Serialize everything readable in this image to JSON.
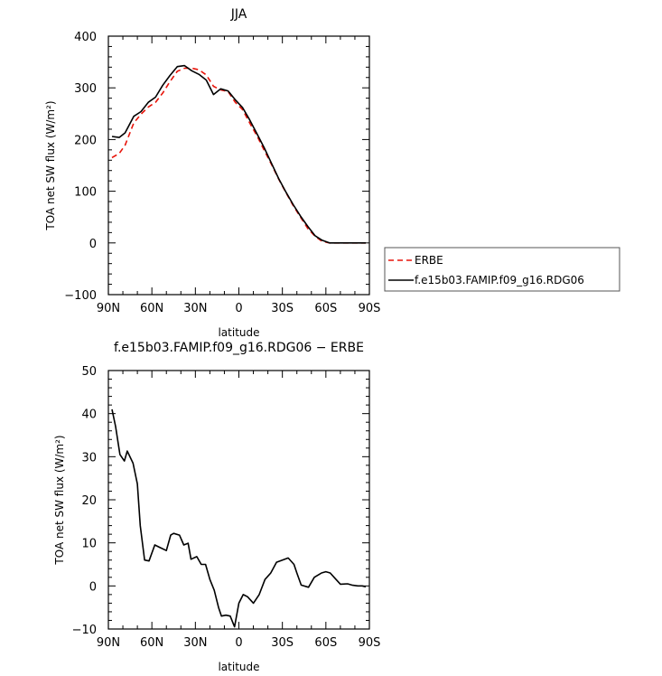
{
  "page": {
    "background": "#ffffff"
  },
  "chart_data": [
    {
      "type": "line",
      "title": "JJA",
      "xlabel": "latitude",
      "ylabel": "TOA net SW flux (W/m²)",
      "xlim": [
        90,
        -90
      ],
      "ylim": [
        -100,
        400
      ],
      "x_ticks": [
        90,
        60,
        30,
        0,
        -30,
        -60,
        -90
      ],
      "x_tick_labels": [
        "90N",
        "60N",
        "30N",
        "0",
        "30S",
        "60S",
        "90S"
      ],
      "y_ticks": [
        -100,
        0,
        100,
        200,
        300,
        400
      ],
      "y_tick_labels": [
        "−100",
        "0",
        "100",
        "200",
        "300",
        "400"
      ],
      "legend": {
        "placement": "right",
        "entries": [
          "ERBE",
          "f.e15b03.FAMIP.f09_g16.RDG06"
        ]
      },
      "series": [
        {
          "name": "ERBE",
          "color": "#e8140a",
          "dash": "dashed",
          "x": [
            87.5,
            82.5,
            78.5,
            72.5,
            67.5,
            62.5,
            57.5,
            52.5,
            47.5,
            42.5,
            37.5,
            32.5,
            27.5,
            22.5,
            17.5,
            12.5,
            7.5,
            2.5,
            -2.5,
            -7.5,
            -12.5,
            -17.5,
            -22.5,
            -27.5,
            -32.5,
            -37.5,
            -42.5,
            -47.5,
            -52.5,
            -57.5,
            -62.5,
            -67.5,
            -72.5,
            -77.5,
            -82.5,
            -87.5
          ],
          "y": [
            165,
            173,
            189,
            232,
            249,
            263,
            272,
            290,
            312,
            332,
            338,
            338,
            335,
            325,
            303,
            296,
            293,
            272,
            258,
            232,
            207,
            179,
            152,
            123,
            97,
            72,
            50,
            28,
            13,
            3,
            0,
            0,
            0,
            0,
            0,
            0
          ]
        },
        {
          "name": "f.e15b03.FAMIP.f09_g16.RDG06",
          "color": "#000000",
          "dash": "solid",
          "x": [
            87.5,
            82.5,
            78.5,
            72.5,
            67.5,
            62.5,
            57.5,
            52.5,
            47.5,
            42.5,
            37.5,
            32.5,
            27.5,
            22.5,
            17.5,
            12.5,
            7.5,
            2.5,
            -2.5,
            -7.5,
            -12.5,
            -17.5,
            -22.5,
            -27.5,
            -32.5,
            -37.5,
            -42.5,
            -47.5,
            -52.5,
            -57.5,
            -62.5,
            -67.5,
            -72.5,
            -77.5,
            -82.5,
            -87.5
          ],
          "y": [
            206,
            204,
            213,
            245,
            254,
            272,
            282,
            305,
            324,
            341,
            343,
            333,
            326,
            315,
            287,
            298,
            294,
            277,
            262,
            238,
            211,
            184,
            154,
            124,
            98,
            74,
            52,
            32,
            14,
            5,
            0,
            0,
            0,
            0,
            0,
            0
          ]
        }
      ]
    },
    {
      "type": "line",
      "title": "f.e15b03.FAMIP.f09_g16.RDG06 − ERBE",
      "xlabel": "latitude",
      "ylabel": "TOA net SW flux (W/m²)",
      "xlim": [
        90,
        -90
      ],
      "ylim": [
        -10,
        50
      ],
      "x_ticks": [
        90,
        60,
        30,
        0,
        -30,
        -60,
        -90
      ],
      "x_tick_labels": [
        "90N",
        "60N",
        "30N",
        "0",
        "30S",
        "60S",
        "90S"
      ],
      "y_ticks": [
        -10,
        0,
        10,
        20,
        30,
        40,
        50
      ],
      "y_tick_labels": [
        "−10",
        "0",
        "10",
        "20",
        "30",
        "40",
        "50"
      ],
      "series": [
        {
          "color": "#000000",
          "dash": "solid",
          "x": [
            87.5,
            85,
            82,
            79,
            77,
            73,
            70,
            68,
            65,
            62,
            58,
            55,
            50,
            47,
            45,
            41,
            38,
            35,
            33,
            29,
            26,
            23,
            20,
            17,
            14,
            12,
            9,
            6,
            3,
            0,
            -3,
            -6,
            -10,
            -14,
            -18,
            -22,
            -26,
            -30,
            -34,
            -38,
            -40,
            -43,
            -48,
            -52,
            -57,
            -60,
            -63,
            -67,
            -70,
            -75,
            -78,
            -82,
            -85,
            -87.5
          ],
          "y": [
            41,
            37,
            30.5,
            29,
            31.3,
            28.5,
            23.7,
            14,
            6,
            5.8,
            9.5,
            9,
            8.2,
            11.8,
            12.2,
            11.8,
            9.5,
            9.9,
            6.2,
            6.8,
            5,
            5,
            1.5,
            -1,
            -5,
            -7,
            -6.8,
            -7,
            -9.5,
            -4,
            -2,
            -2.5,
            -4,
            -2,
            1.5,
            3,
            5.5,
            6,
            6.5,
            5,
            3,
            0.2,
            -0.3,
            2,
            3,
            3.3,
            3,
            1.5,
            0.4,
            0.5,
            0.2,
            0,
            0,
            -0.2
          ]
        }
      ]
    }
  ]
}
